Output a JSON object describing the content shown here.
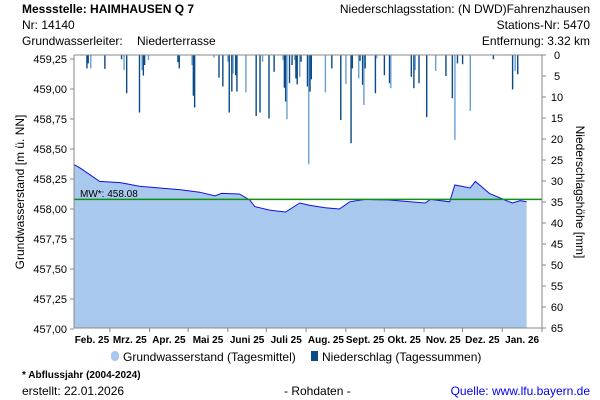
{
  "header": {
    "station": "Messstelle: HAIMHAUSEN Q 7",
    "nr": "Nr: 14140",
    "aquifer_label": "Grundwasserleiter:",
    "aquifer": "Niederterrasse",
    "precip_station": "Niederschlagsstation: (N DWD)Fahrenzhausen",
    "precip_station_nr": "Stations-Nr: 5470",
    "distance": "Entfernung: 3.32 km"
  },
  "footer": {
    "footnote": "* Abflussjahr (2004-2024)",
    "created": "erstellt:  22.01.2026",
    "raw": "- Rohdaten -",
    "source": "Quelle: www.lfu.bayern.de"
  },
  "colors": {
    "area": "#a8c8ee",
    "line": "#1010e0",
    "mean": "#109010",
    "precip_dark": "#0a4a86",
    "precip_light": "#6a9fd0"
  },
  "chart_data": {
    "type": "area",
    "xlabel": "",
    "ylabel": "Grundwasserstand [m ü. NN]",
    "y2label": "Niederschlagshöhe [mm]",
    "ylim": [
      457.0,
      459.25
    ],
    "y2lim": [
      0,
      65
    ],
    "y2_inverted": true,
    "x_unit": "days since 01.02.2025",
    "xlim": [
      0,
      365
    ],
    "yticks": [
      "459,25",
      "459,00",
      "458,75",
      "458,50",
      "458,25",
      "458,00",
      "457,75",
      "457,50",
      "457,25",
      "457,00"
    ],
    "y2ticks": [
      "0",
      "5",
      "10",
      "15",
      "20",
      "25",
      "30",
      "35",
      "40",
      "45",
      "50",
      "55",
      "60",
      "65"
    ],
    "months": [
      "Feb. 25",
      "Mrz. 25",
      "Apr. 25",
      "Mai 25",
      "Juni 25",
      "Juli 25",
      "Aug. 25",
      "Sept. 25",
      "Okt. 25",
      "Nov. 25",
      "Dez. 25",
      "Jan. 26"
    ],
    "month_lengths": [
      28,
      31,
      30,
      31,
      30,
      31,
      31,
      30,
      31,
      30,
      31,
      31
    ],
    "mean": {
      "label": "MW*: 458.08",
      "value": 458.08
    },
    "legend": [
      "Grundwasserstand (Tagesmittel)",
      "Niederschlag (Tagessummen)"
    ],
    "legend_position": "bottom",
    "groundwater": {
      "x": [
        0,
        5,
        20,
        36,
        51,
        67,
        83,
        98,
        110,
        115,
        129,
        137,
        141,
        153,
        165,
        176,
        184,
        196,
        207,
        215,
        227,
        246,
        262,
        274,
        278,
        293,
        297,
        309,
        313,
        324,
        336,
        342,
        348,
        353
      ],
      "y": [
        458.37,
        458.34,
        458.23,
        458.22,
        458.19,
        458.175,
        458.16,
        458.14,
        458.11,
        458.13,
        458.125,
        458.075,
        458.02,
        457.99,
        457.975,
        458.05,
        458.03,
        458.01,
        458.0,
        458.06,
        458.08,
        458.075,
        458.06,
        458.05,
        458.08,
        458.06,
        458.2,
        458.175,
        458.23,
        458.13,
        458.075,
        458.05,
        458.07,
        458.06
      ]
    },
    "precipitation": {
      "x": [
        10,
        11,
        13,
        24,
        37,
        39,
        41,
        51,
        53,
        54,
        55,
        58,
        81,
        82,
        92,
        93,
        94,
        109,
        113,
        116,
        120,
        121,
        123,
        124,
        126,
        127,
        134,
        142,
        145,
        147,
        152,
        156,
        163,
        164,
        165,
        166,
        168,
        170,
        172,
        173,
        174,
        176,
        177,
        182,
        183,
        184,
        185,
        196,
        201,
        208,
        212,
        216,
        217,
        222,
        223,
        225,
        226,
        227,
        235,
        236,
        242,
        246,
        247,
        263,
        265,
        266,
        269,
        275,
        282,
        290,
        295,
        297,
        299,
        303,
        309,
        327,
        342,
        344,
        346
      ],
      "y": [
        3.2,
        2.0,
        3.2,
        3.3,
        1.0,
        3.6,
        9.1,
        13.7,
        3.6,
        4.9,
        2.4,
        1.2,
        1.7,
        3.2,
        2.4,
        9.7,
        12.5,
        0.6,
        5.4,
        7.5,
        1.6,
        13.7,
        8.7,
        4.4,
        4.8,
        8.7,
        8.9,
        14.5,
        13.7,
        1.6,
        15.1,
        4.0,
        1.2,
        7.8,
        11.1,
        15.3,
        6.7,
        2.4,
        1.2,
        5.6,
        7.0,
        5.2,
        1.6,
        7.5,
        26.0,
        8.7,
        5.8,
        8.9,
        3.2,
        15.5,
        6.9,
        21.0,
        3.2,
        5.6,
        1.4,
        7.1,
        11.9,
        3.2,
        9.1,
        0.8,
        4.8,
        6.7,
        7.9,
        5.2,
        7.9,
        3.6,
        6.7,
        14.8,
        3.8,
        5.0,
        10.3,
        20.2,
        2.0,
        2.2,
        13.3,
        1.0,
        8.2,
        3.8,
        4.6
      ]
    }
  }
}
